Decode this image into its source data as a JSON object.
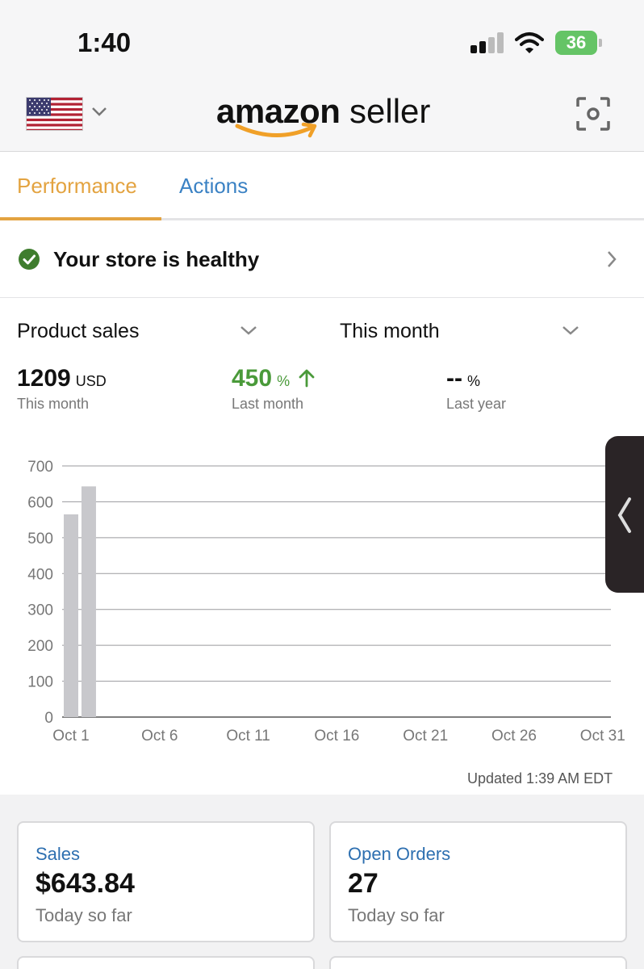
{
  "status_bar": {
    "time": "1:40",
    "battery_level": "36"
  },
  "header": {
    "logo_bold": "amazon",
    "logo_light": "seller"
  },
  "tabs": [
    {
      "label": "Performance",
      "active": true
    },
    {
      "label": "Actions",
      "active": false
    }
  ],
  "health": {
    "text": "Your store is healthy"
  },
  "selectors": {
    "metric": "Product sales",
    "period": "This month"
  },
  "metrics": [
    {
      "value": "1209",
      "unit": "USD",
      "label": "This month",
      "color": "#111111"
    },
    {
      "value": "450",
      "unit": "%",
      "label": "Last month",
      "color": "#4a9a3a",
      "trend": "up"
    },
    {
      "value": "--",
      "unit": "%",
      "label": "Last year",
      "color": "#111111"
    }
  ],
  "chart_data": {
    "type": "bar",
    "y_ticks": [
      "700",
      "600",
      "500",
      "400",
      "300",
      "200",
      "100",
      "0"
    ],
    "x_ticks": [
      "Oct 1",
      "Oct 6",
      "Oct 11",
      "Oct 16",
      "Oct 21",
      "Oct 26",
      "Oct 31"
    ],
    "ylim": [
      0,
      700
    ],
    "grid": true,
    "bar_color": "#c8c8cc",
    "values": [
      565,
      643
    ]
  },
  "updated": "Updated 1:39 AM EDT",
  "cards": [
    {
      "title": "Sales",
      "value": "$643.84",
      "sub": "Today so far"
    },
    {
      "title": "Open Orders",
      "value": "27",
      "sub": "Today so far"
    }
  ],
  "colors": {
    "accent_orange": "#e3a340",
    "link_blue": "#3b82c4",
    "success_green": "#3f7d2e"
  }
}
